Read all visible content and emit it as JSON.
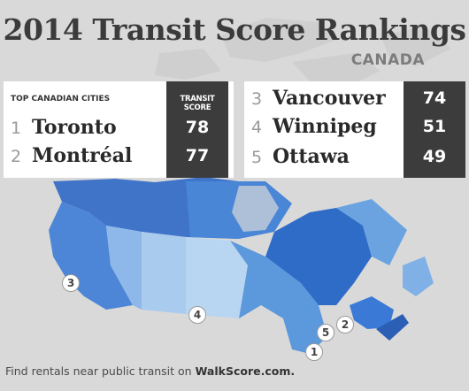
{
  "title": "2014 Transit Score Rankings",
  "subtitle": "CANADA",
  "table_left": {
    "header_cities": "TOP CANADIAN CITIES",
    "header_score": "TRANSIT SCORE",
    "rows": [
      {
        "rank": "1",
        "city": "Toronto",
        "score": "78"
      },
      {
        "rank": "2",
        "city": "Montréal",
        "score": "77"
      }
    ]
  },
  "table_right": {
    "rows": [
      {
        "rank": "3",
        "city": "Vancouver",
        "score": "74"
      },
      {
        "rank": "4",
        "city": "Winnipeg",
        "score": "51"
      },
      {
        "rank": "5",
        "city": "Ottawa",
        "score": "49"
      }
    ]
  },
  "map_pins": [
    "3",
    "4",
    "5",
    "2",
    "1"
  ],
  "footer": {
    "text": "Find rentals near public transit on ",
    "brand": "WalkScore.com."
  },
  "colors": {
    "background": "#d9d9d9",
    "map_dark": "#3f7ad0",
    "map_mid": "#6aa3e0",
    "map_light": "#a9cbee",
    "score_bg": "#3c3c3c"
  }
}
